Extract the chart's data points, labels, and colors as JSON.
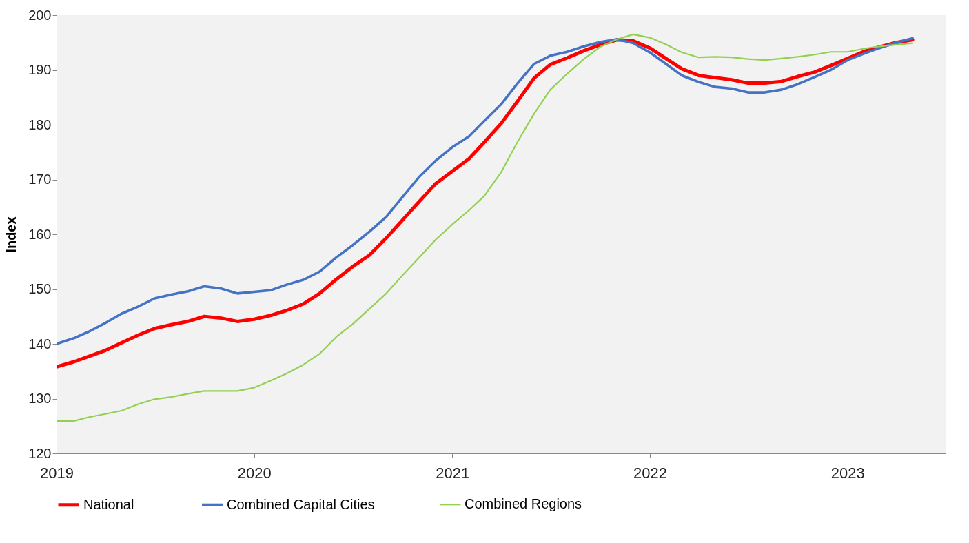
{
  "chart_data": {
    "type": "line",
    "ylabel": "Index",
    "x": [
      "2019-01",
      "2019-02",
      "2019-03",
      "2019-04",
      "2019-05",
      "2019-06",
      "2019-07",
      "2019-08",
      "2019-09",
      "2019-10",
      "2019-11",
      "2019-12",
      "2020-01",
      "2020-02",
      "2020-03",
      "2020-04",
      "2020-05",
      "2020-06",
      "2020-07",
      "2020-08",
      "2020-09",
      "2020-10",
      "2020-11",
      "2020-12",
      "2021-01",
      "2021-02",
      "2021-03",
      "2021-04",
      "2021-05",
      "2021-06",
      "2021-07",
      "2021-08",
      "2021-09",
      "2021-10",
      "2021-11",
      "2021-12",
      "2022-01",
      "2022-02",
      "2022-03",
      "2022-04",
      "2022-05",
      "2022-06",
      "2022-07",
      "2022-08",
      "2022-09",
      "2022-10",
      "2022-11",
      "2022-12",
      "2023-01",
      "2023-02",
      "2023-03",
      "2023-04",
      "2023-05"
    ],
    "series": [
      {
        "name": "National",
        "color": "#ff0000",
        "values": [
          135.8,
          136.7,
          137.7,
          138.8,
          140.2,
          141.6,
          142.8,
          143.5,
          144.1,
          145.0,
          144.7,
          144.1,
          144.5,
          145.2,
          146.1,
          147.3,
          149.2,
          151.8,
          154.1,
          156.2,
          159.3,
          162.6,
          166.0,
          169.2,
          171.5,
          173.8,
          176.8,
          180.2,
          184.2,
          188.5,
          191.0,
          192.2,
          193.5,
          194.6,
          195.5,
          195.3,
          194.0,
          192.0,
          190.2,
          189.0,
          188.6,
          188.2,
          187.6,
          187.6,
          187.9,
          188.8,
          189.6,
          190.8,
          192.1,
          193.4,
          194.2,
          195.0,
          195.5
        ]
      },
      {
        "name": "Combined Capital Cities",
        "color": "#4472c4",
        "values": [
          140.0,
          141.0,
          142.2,
          143.8,
          145.5,
          146.8,
          148.3,
          149.0,
          149.6,
          150.5,
          150.1,
          149.2,
          149.5,
          149.8,
          150.8,
          151.7,
          153.2,
          155.8,
          158.0,
          160.5,
          163.2,
          166.8,
          170.5,
          173.4,
          175.9,
          177.9,
          180.7,
          183.7,
          187.5,
          191.1,
          192.6,
          193.3,
          194.3,
          195.1,
          195.6,
          194.9,
          193.2,
          191.0,
          189.0,
          187.8,
          186.9,
          186.6,
          185.9,
          185.9,
          186.4,
          187.4,
          188.7,
          190.0,
          191.8,
          193.0,
          194.0,
          195.0,
          195.8
        ]
      },
      {
        "name": "Combined Regions",
        "color": "#92d050",
        "values": [
          125.9,
          125.9,
          126.6,
          127.2,
          127.8,
          129.0,
          129.9,
          130.3,
          130.9,
          131.4,
          131.4,
          131.4,
          132.0,
          133.3,
          134.6,
          136.2,
          138.2,
          141.3,
          143.6,
          146.4,
          149.2,
          152.5,
          155.8,
          159.0,
          161.8,
          164.4,
          167.0,
          171.3,
          176.8,
          182.0,
          186.4,
          189.3,
          192.0,
          194.2,
          195.6,
          196.5,
          195.9,
          194.6,
          193.2,
          192.3,
          192.4,
          192.3,
          192.0,
          191.8,
          192.1,
          192.4,
          192.8,
          193.3,
          193.3,
          193.9,
          194.3,
          194.6,
          194.9
        ]
      }
    ],
    "xlim": [
      "2019-01",
      "2023-07"
    ],
    "xticks": [
      "2019",
      "2020",
      "2021",
      "2022",
      "2023"
    ],
    "ylim": [
      120,
      200
    ],
    "yticks": [
      120,
      130,
      140,
      150,
      160,
      170,
      180,
      190,
      200
    ],
    "grid": false,
    "legend": "bottom",
    "line_style": "solid",
    "marker": "none"
  }
}
